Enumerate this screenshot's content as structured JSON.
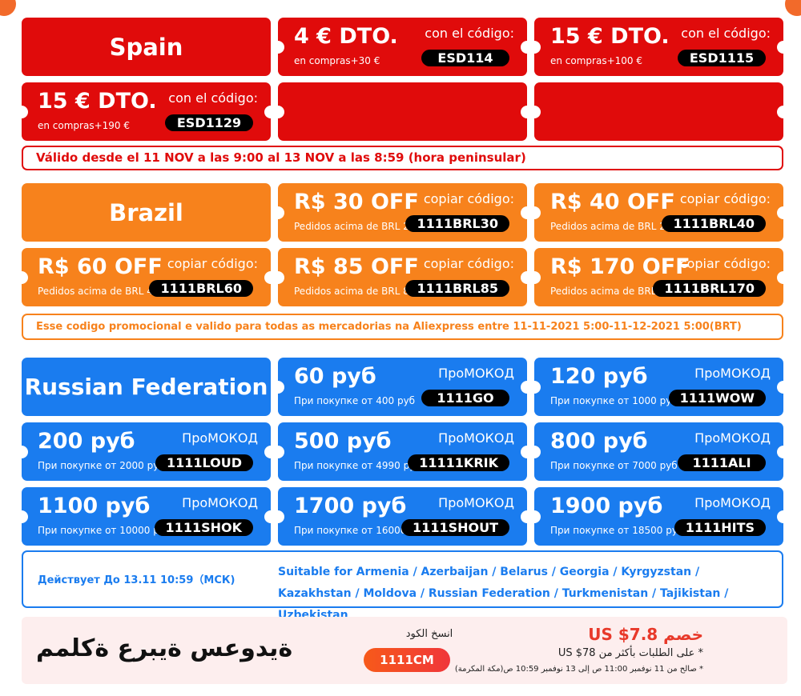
{
  "colors": {
    "spain": "#e00b0b",
    "brazil": "#f7821c",
    "russia": "#1a7cef",
    "code_pill": "#000000"
  },
  "spain": {
    "title": "Spain",
    "code_label": "con el código:",
    "coupons": [
      {
        "amount": "4 € DTO.",
        "min": "en compras+30 €",
        "code": "ESD114"
      },
      {
        "amount": "15 € DTO.",
        "min": "en compras+100 €",
        "code": "ESD1115"
      },
      {
        "amount": "15 € DTO.",
        "min": "en compras+190 €",
        "code": "ESD1129"
      }
    ],
    "note": "Válido desde el 11 NOV a las 9:00 al 13 NOV a las 8:59 (hora peninsular)"
  },
  "brazil": {
    "title": "Brazil",
    "code_label": "copiar código:",
    "coupons": [
      {
        "amount": "R$ 30 OFF",
        "min": "Pedidos acima de BRL 200",
        "code": "1111BRL30"
      },
      {
        "amount": "R$ 40 OFF",
        "min": "Pedidos acima de BRL 280",
        "code": "1111BRL40"
      },
      {
        "amount": "R$ 60 OFF",
        "min": "Pedidos acima de BRL 450",
        "code": "1111BRL60"
      },
      {
        "amount": "R$ 85 OFF",
        "min": "Pedidos acima de BRL 850",
        "code": "1111BRL85"
      },
      {
        "amount": "R$ 170 OFF",
        "min": "Pedidos acima de BRL 1420",
        "code": "1111BRL170"
      }
    ],
    "note": "Esse codigo promocional e valido para todas as mercadorias na Aliexpress entre 11-11-2021 5:00-11-12-2021 5:00(BRT)"
  },
  "russia": {
    "title": "Russian Federation",
    "code_label": "ПроМОКОД",
    "coupons": [
      {
        "amount": "60 руб",
        "min": "При покупке от 400 руб",
        "code": "1111GO"
      },
      {
        "amount": "120 руб",
        "min": "При покупке от 1000 руб",
        "code": "1111WOW"
      },
      {
        "amount": "200 руб",
        "min": "При покупке от 2000 руб",
        "code": "1111LOUD"
      },
      {
        "amount": "500 руб",
        "min": "При покупке от 4990 руб",
        "code": "11111KRIK"
      },
      {
        "amount": "800 руб",
        "min": "При покупке от 7000 руб",
        "code": "1111ALI"
      },
      {
        "amount": "1100 руб",
        "min": "При покупке от 10000 руб",
        "code": "1111SHOK"
      },
      {
        "amount": "1700 руб",
        "min": "При покупке от 16000 руб",
        "code": "1111SHOUT"
      },
      {
        "amount": "1900 руб",
        "min": "При покупке от 18500 руб",
        "code": "1111HITS"
      }
    ],
    "note_left": "Действует До 13.11 10:59（МСК)",
    "note_right": "Suitable for Armenia / Azerbaijan / Belarus / Georgia / Kyrgyzstan / Kazakhstan / Moldova / Russian Federation / Turkmenistan / Tajikistan / Uzbekistan"
  },
  "saudi": {
    "title": "ةيدوعس ةيبرع ةكلمم",
    "copy_label": "انسخ الكود",
    "code": "1111CM",
    "discount": "خصم US $7.8",
    "line1": "* على الطلبات بأكثر من  US $78",
    "line2": "* صالح من 11 نوفمبر 11:00 ص إلى 13 نوفمبر 10:59 ص(مكة المكرمة)"
  }
}
